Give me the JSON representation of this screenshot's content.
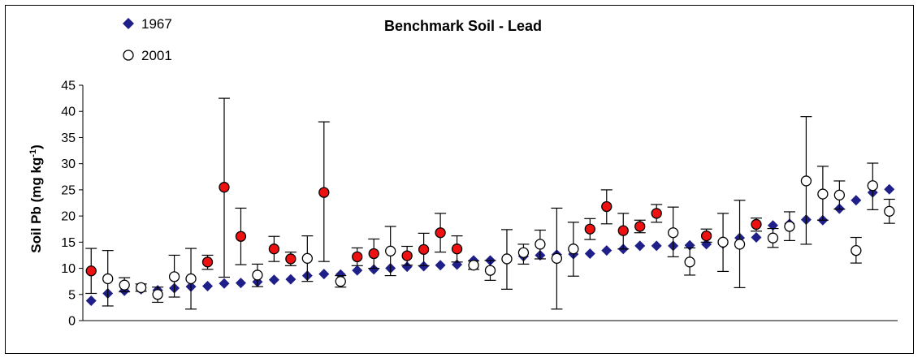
{
  "chart_data": {
    "type": "scatter",
    "title": "Benchmark Soil - Lead",
    "xlabel": "",
    "ylabel_main": "Soil Pb (mg kg",
    "ylabel_sup": "-1",
    "ylabel_close": ")",
    "ylim": [
      0,
      45
    ],
    "yticks": [
      0,
      5,
      10,
      15,
      20,
      25,
      30,
      35,
      40,
      45
    ],
    "grid": false,
    "legend_position": "top-left",
    "colors": {
      "series_1967": "#1f1f8a",
      "marker_2001_fill": "#ffffff",
      "marker_2001_highlight": "#ee1111",
      "marker_stroke": "#000000"
    },
    "series": [
      {
        "name": "1967",
        "marker": "diamond",
        "values": [
          3.8,
          5.2,
          5.7,
          6.0,
          5.8,
          6.2,
          6.5,
          6.6,
          7.1,
          7.2,
          7.4,
          7.8,
          7.9,
          8.6,
          8.9,
          8.8,
          9.6,
          9.8,
          10.0,
          10.3,
          10.4,
          10.6,
          10.7,
          11.5,
          11.5,
          11.8,
          12.3,
          12.5,
          12.6,
          12.7,
          12.8,
          13.4,
          13.7,
          14.3,
          14.3,
          14.3,
          14.4,
          14.6,
          14.7,
          15.8,
          15.9,
          18.2,
          18.5,
          19.3,
          19.2,
          21.4,
          23.0,
          24.5,
          25.1
        ]
      },
      {
        "name": "2001",
        "marker": "circle",
        "points": [
          {
            "x": 1,
            "y": 9.5,
            "err_low": 5.2,
            "err_high": 13.8,
            "highlight": true
          },
          {
            "x": 2,
            "y": 8.0,
            "err_low": 2.8,
            "err_high": 13.4,
            "highlight": false
          },
          {
            "x": 3,
            "y": 6.8,
            "err_low": 5.5,
            "err_high": 8.2,
            "highlight": false
          },
          {
            "x": 4,
            "y": 6.3,
            "err_low": 5.6,
            "err_high": 7.0,
            "highlight": false
          },
          {
            "x": 5,
            "y": 5.0,
            "err_low": 3.5,
            "err_high": 6.4,
            "highlight": false
          },
          {
            "x": 6,
            "y": 8.4,
            "err_low": 4.5,
            "err_high": 12.5,
            "highlight": false
          },
          {
            "x": 7,
            "y": 8.0,
            "err_low": 2.2,
            "err_high": 13.8,
            "highlight": false
          },
          {
            "x": 8,
            "y": 11.2,
            "err_low": 9.8,
            "err_high": 12.5,
            "highlight": true
          },
          {
            "x": 9,
            "y": 25.5,
            "err_low": 8.3,
            "err_high": 42.5,
            "highlight": true
          },
          {
            "x": 10,
            "y": 16.1,
            "err_low": 10.7,
            "err_high": 21.5,
            "highlight": true
          },
          {
            "x": 11,
            "y": 8.7,
            "err_low": 6.5,
            "err_high": 10.8,
            "highlight": false
          },
          {
            "x": 12,
            "y": 13.7,
            "err_low": 11.3,
            "err_high": 16.1,
            "highlight": true
          },
          {
            "x": 13,
            "y": 11.8,
            "err_low": 10.5,
            "err_high": 13.1,
            "highlight": true
          },
          {
            "x": 14,
            "y": 11.9,
            "err_low": 7.5,
            "err_high": 16.2,
            "highlight": false
          },
          {
            "x": 15,
            "y": 24.5,
            "err_low": 11.3,
            "err_high": 38.0,
            "highlight": true
          },
          {
            "x": 16,
            "y": 7.5,
            "err_low": 6.4,
            "err_high": 8.6,
            "highlight": false
          },
          {
            "x": 17,
            "y": 12.2,
            "err_low": 10.5,
            "err_high": 13.9,
            "highlight": true
          },
          {
            "x": 18,
            "y": 12.8,
            "err_low": 10.0,
            "err_high": 15.6,
            "highlight": true
          },
          {
            "x": 19,
            "y": 13.3,
            "err_low": 8.6,
            "err_high": 18.0,
            "highlight": false
          },
          {
            "x": 20,
            "y": 12.4,
            "err_low": 10.6,
            "err_high": 14.2,
            "highlight": true
          },
          {
            "x": 21,
            "y": 13.6,
            "err_low": 10.5,
            "err_high": 16.7,
            "highlight": true
          },
          {
            "x": 22,
            "y": 16.8,
            "err_low": 13.1,
            "err_high": 20.5,
            "highlight": true
          },
          {
            "x": 23,
            "y": 13.7,
            "err_low": 11.2,
            "err_high": 16.2,
            "highlight": true
          },
          {
            "x": 24,
            "y": 10.6,
            "err_low": 9.8,
            "err_high": 11.4,
            "highlight": false
          },
          {
            "x": 25,
            "y": 9.6,
            "err_low": 7.7,
            "err_high": 11.5,
            "highlight": false
          },
          {
            "x": 26,
            "y": 11.8,
            "err_low": 6.0,
            "err_high": 17.4,
            "highlight": false
          },
          {
            "x": 27,
            "y": 13.0,
            "err_low": 10.8,
            "err_high": 14.6,
            "highlight": false
          },
          {
            "x": 28,
            "y": 14.6,
            "err_low": 11.8,
            "err_high": 17.3,
            "highlight": false
          },
          {
            "x": 29,
            "y": 11.9,
            "err_low": 2.2,
            "err_high": 21.5,
            "highlight": false
          },
          {
            "x": 30,
            "y": 13.7,
            "err_low": 8.5,
            "err_high": 18.8,
            "highlight": false
          },
          {
            "x": 31,
            "y": 17.5,
            "err_low": 15.5,
            "err_high": 19.5,
            "highlight": true
          },
          {
            "x": 32,
            "y": 21.8,
            "err_low": 18.5,
            "err_high": 25.0,
            "highlight": true
          },
          {
            "x": 33,
            "y": 17.2,
            "err_low": 13.7,
            "err_high": 20.5,
            "highlight": true
          },
          {
            "x": 34,
            "y": 18.0,
            "err_low": 16.8,
            "err_high": 19.2,
            "highlight": true
          },
          {
            "x": 35,
            "y": 20.5,
            "err_low": 18.8,
            "err_high": 22.2,
            "highlight": true
          },
          {
            "x": 36,
            "y": 16.8,
            "err_low": 12.2,
            "err_high": 21.7,
            "highlight": false
          },
          {
            "x": 37,
            "y": 11.2,
            "err_low": 8.7,
            "err_high": 13.9,
            "highlight": false
          },
          {
            "x": 38,
            "y": 16.2,
            "err_low": 15.0,
            "err_high": 17.5,
            "highlight": true
          },
          {
            "x": 39,
            "y": 15.0,
            "err_low": 9.4,
            "err_high": 20.5,
            "highlight": false
          },
          {
            "x": 40,
            "y": 14.6,
            "err_low": 6.3,
            "err_high": 23.0,
            "highlight": false
          },
          {
            "x": 41,
            "y": 18.4,
            "err_low": 17.1,
            "err_high": 19.6,
            "highlight": true
          },
          {
            "x": 42,
            "y": 15.8,
            "err_low": 14.0,
            "err_high": 17.6,
            "highlight": false
          },
          {
            "x": 43,
            "y": 18.0,
            "err_low": 15.3,
            "err_high": 20.8,
            "highlight": false
          },
          {
            "x": 44,
            "y": 26.7,
            "err_low": 14.6,
            "err_high": 39.0,
            "highlight": false
          },
          {
            "x": 45,
            "y": 24.2,
            "err_low": 19.2,
            "err_high": 29.5,
            "highlight": false
          },
          {
            "x": 46,
            "y": 24.0,
            "err_low": 21.3,
            "err_high": 26.7,
            "highlight": false
          },
          {
            "x": 47,
            "y": 13.4,
            "err_low": 11.0,
            "err_high": 15.9,
            "highlight": false
          },
          {
            "x": 48,
            "y": 25.8,
            "err_low": 21.2,
            "err_high": 30.1,
            "highlight": false
          },
          {
            "x": 49,
            "y": 20.9,
            "err_low": 18.6,
            "err_high": 23.2,
            "highlight": false
          }
        ]
      }
    ]
  }
}
